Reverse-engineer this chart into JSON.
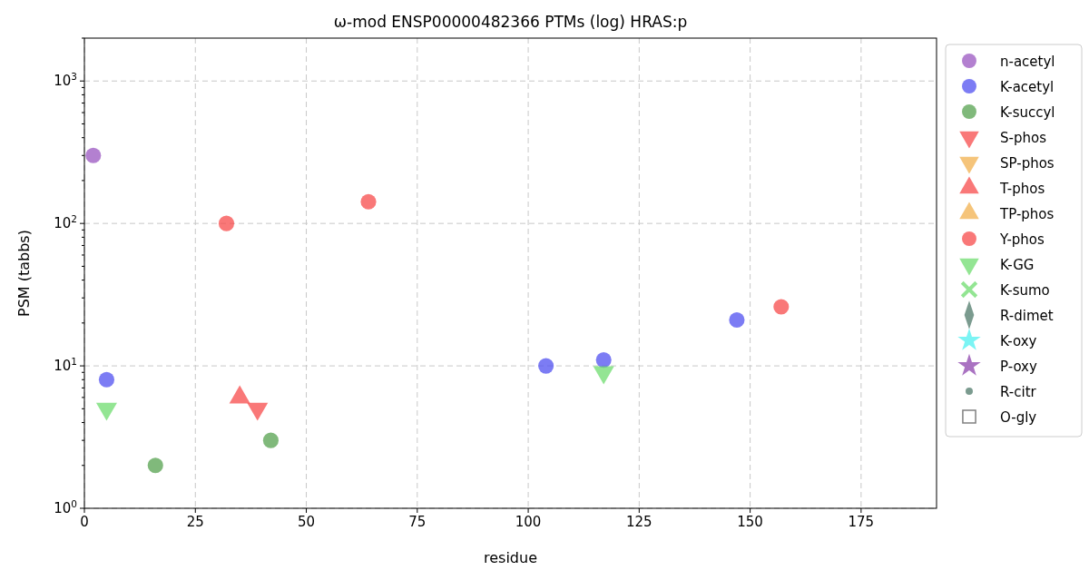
{
  "chart_data": {
    "type": "scatter",
    "title": "ω-mod ENSP00000482366 PTMs (log) HRAS:p",
    "xlabel": "residue",
    "ylabel": "PSM (tabbs)",
    "log": "y",
    "grid": true,
    "legend": "right",
    "xlim": [
      0,
      192
    ],
    "xticks": [
      0,
      25,
      50,
      75,
      100,
      125,
      150,
      175
    ],
    "ylim": [
      1,
      2000
    ],
    "yticks": [
      {
        "value": 1,
        "label": "10$^{0}$"
      },
      {
        "value": 2,
        "label": null
      },
      {
        "value": 3,
        "label": null
      },
      {
        "value": 4,
        "label": null
      },
      {
        "value": 5,
        "label": null
      },
      {
        "value": 6,
        "label": null
      },
      {
        "value": 7,
        "label": null
      },
      {
        "value": 8,
        "label": null
      },
      {
        "value": 9,
        "label": null
      },
      {
        "value": 10,
        "label": "10$^{1}$"
      },
      {
        "value": 20,
        "label": null
      },
      {
        "value": 30,
        "label": null
      },
      {
        "value": 40,
        "label": null
      },
      {
        "value": 50,
        "label": null
      },
      {
        "value": 60,
        "label": null
      },
      {
        "value": 70,
        "label": null
      },
      {
        "value": 80,
        "label": null
      },
      {
        "value": 90,
        "label": null
      },
      {
        "value": 100,
        "label": "10$^{2}$"
      },
      {
        "value": 200,
        "label": null
      },
      {
        "value": 300,
        "label": null
      },
      {
        "value": 400,
        "label": null
      },
      {
        "value": 500,
        "label": null
      },
      {
        "value": 600,
        "label": null
      },
      {
        "value": 700,
        "label": null
      },
      {
        "value": 800,
        "label": null
      },
      {
        "value": 900,
        "label": null
      },
      {
        "value": 1000,
        "label": "10$^{3}$"
      },
      {
        "value": 2000,
        "label": null
      }
    ],
    "series": [
      {
        "name": "n-acetyl",
        "color": "#9a55c0",
        "marker": "circle",
        "x": [
          2
        ],
        "values": [
          300
        ]
      },
      {
        "name": "K-acetyl",
        "color": "#5050f0",
        "marker": "circle",
        "x": [
          5,
          104,
          117,
          147
        ],
        "values": [
          8,
          10,
          11,
          21
        ]
      },
      {
        "name": "K-succyl",
        "color": "#55a24f",
        "marker": "circle",
        "x": [
          16,
          42
        ],
        "values": [
          2,
          3
        ]
      },
      {
        "name": "S-phos",
        "color": "#f74b4b",
        "marker": "triangle-down",
        "x": [
          39
        ],
        "values": [
          5
        ]
      },
      {
        "name": "SP-phos",
        "color": "#f2b04e",
        "marker": "triangle-down"
      },
      {
        "name": "T-phos",
        "color": "#f74b4b",
        "marker": "triangle",
        "x": [
          35
        ],
        "values": [
          6
        ]
      },
      {
        "name": "TP-phos",
        "color": "#f2b04e",
        "marker": "triangle"
      },
      {
        "name": "Y-phos",
        "color": "#f74b4b",
        "marker": "circle",
        "x": [
          32,
          64,
          157
        ],
        "values": [
          100,
          142,
          26
        ]
      },
      {
        "name": "K-GG",
        "color": "#6fdc6f",
        "marker": "triangle-down",
        "x": [
          5,
          117
        ],
        "values": [
          5,
          9
        ]
      },
      {
        "name": "K-sumo",
        "color": "#6fdc6f",
        "marker": "cross"
      },
      {
        "name": "R-dimet",
        "color": "#4f7a6a",
        "marker": "diamond"
      },
      {
        "name": "K-oxy",
        "color": "#4ff0f0",
        "marker": "star"
      },
      {
        "name": "P-oxy",
        "color": "#8e44ad",
        "marker": "star"
      },
      {
        "name": "R-citr",
        "color": "#4f7a6a",
        "marker": "point"
      },
      {
        "name": "O-gly",
        "color": "#555555",
        "marker": "square-open"
      }
    ]
  }
}
